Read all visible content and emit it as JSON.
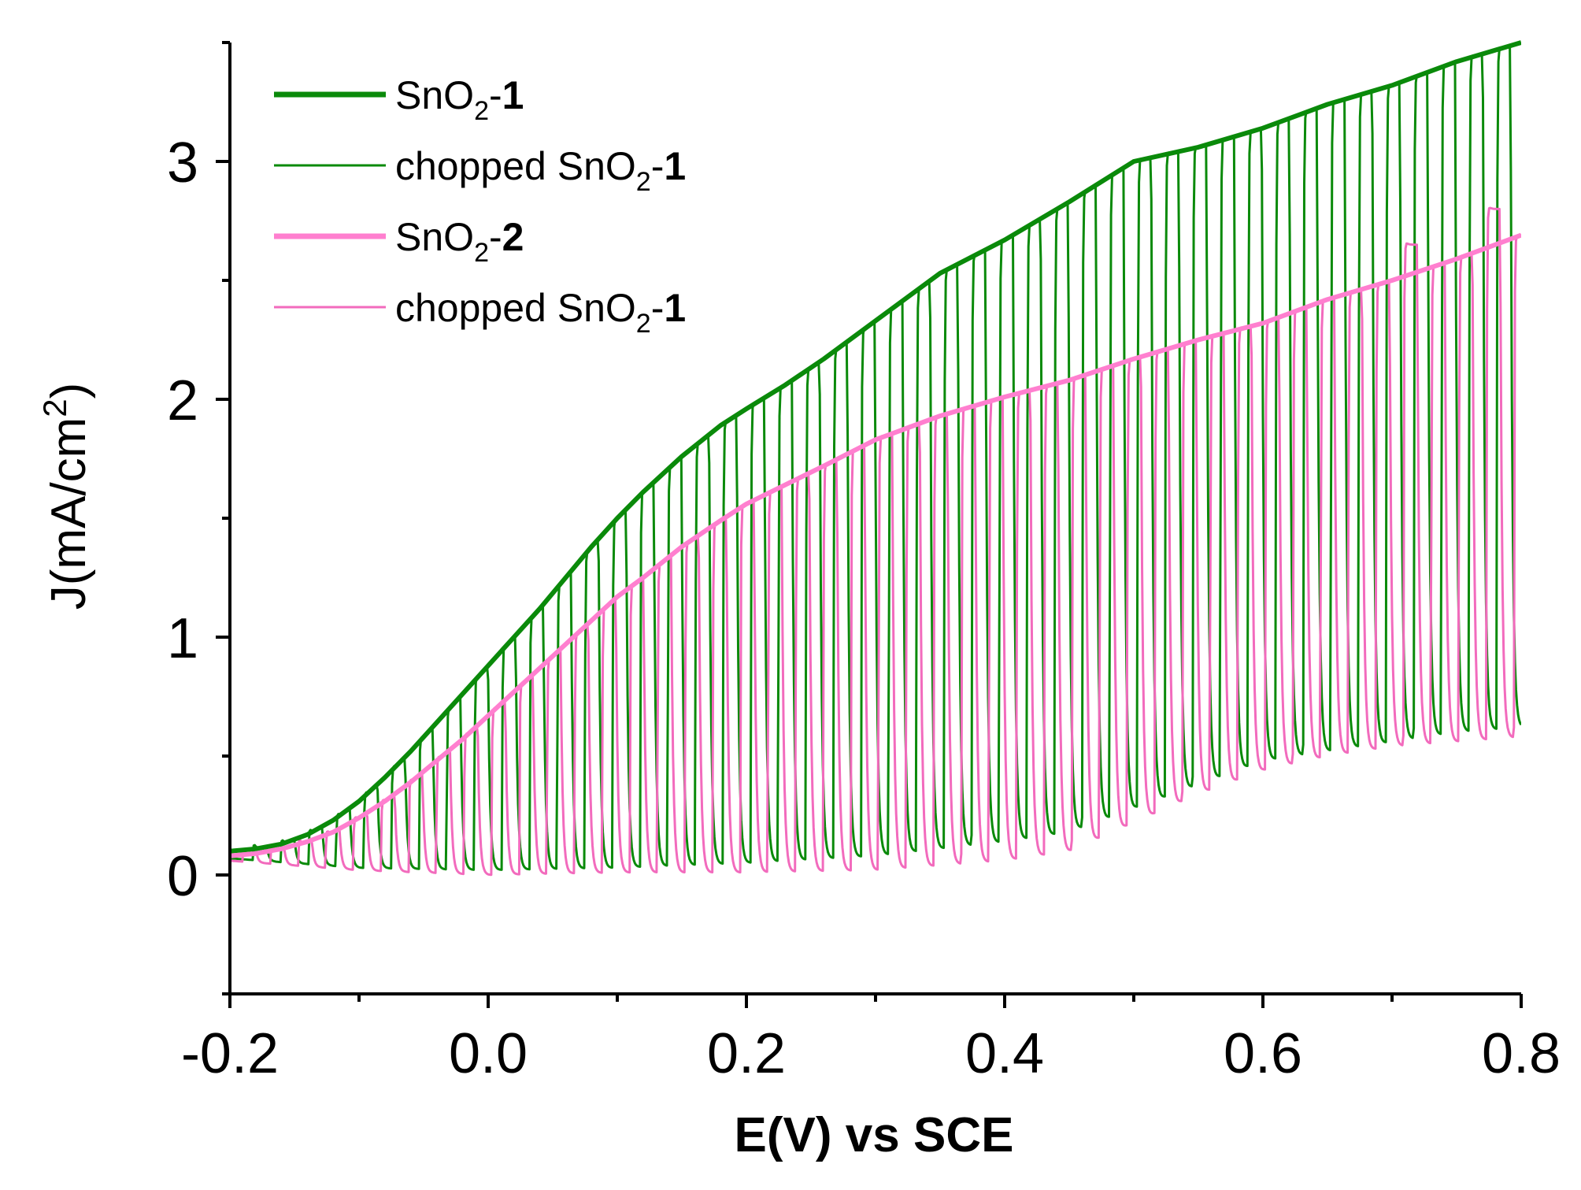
{
  "chart_data": {
    "type": "line",
    "title": "",
    "xlabel": "E(V) vs SCE",
    "ylabel": "J(mA/cm²)",
    "ylabel_parts": {
      "base": "J(mA/cm",
      "sup": "2",
      "close": ")"
    },
    "xlim": [
      -0.2,
      0.8
    ],
    "ylim": [
      -0.5,
      3.5
    ],
    "x_ticks": [
      -0.2,
      0.0,
      0.2,
      0.4,
      0.6,
      0.8
    ],
    "x_tick_labels": [
      "-0.2",
      "0.0",
      "0.2",
      "0.4",
      "0.6",
      "0.8"
    ],
    "y_ticks": [
      0,
      1,
      2,
      3
    ],
    "y_tick_labels": [
      "0",
      "1",
      "2",
      "3"
    ],
    "grid": false,
    "legend_position": "top-left",
    "series": [
      {
        "name": "SnO2-1",
        "label_parts": {
          "base": "SnO",
          "sub": "2",
          "suffix": "-",
          "bold": "1"
        },
        "style": "thick",
        "color": "#0a8a0a",
        "x": [
          -0.2,
          -0.18,
          -0.16,
          -0.14,
          -0.12,
          -0.1,
          -0.08,
          -0.06,
          -0.04,
          -0.02,
          0.0,
          0.02,
          0.04,
          0.06,
          0.08,
          0.1,
          0.12,
          0.15,
          0.18,
          0.2,
          0.23,
          0.26,
          0.3,
          0.35,
          0.4,
          0.45,
          0.5,
          0.55,
          0.6,
          0.65,
          0.7,
          0.75,
          0.8
        ],
        "y": [
          0.1,
          0.11,
          0.13,
          0.17,
          0.23,
          0.31,
          0.41,
          0.52,
          0.64,
          0.76,
          0.88,
          1.0,
          1.12,
          1.25,
          1.38,
          1.5,
          1.61,
          1.76,
          1.89,
          1.96,
          2.06,
          2.17,
          2.33,
          2.53,
          2.67,
          2.83,
          3.0,
          3.06,
          3.14,
          3.24,
          3.32,
          3.42,
          3.5
        ]
      },
      {
        "name": "chopped SnO2-1",
        "label_parts": {
          "base": "chopped SnO",
          "sub": "2",
          "suffix": "-",
          "bold": "1"
        },
        "style": "thin",
        "color": "#0a8a0a",
        "chop": {
          "x_start": -0.182,
          "period": 0.0214,
          "duty": 0.5,
          "peaks": [
            [
              0.7,
              3.0
            ],
            [
              0.75,
              3.3
            ]
          ]
        },
        "dark_x": [
          -0.2,
          -0.1,
          0.0,
          0.1,
          0.2,
          0.3,
          0.4,
          0.45,
          0.5,
          0.55,
          0.6,
          0.65,
          0.7,
          0.75,
          0.8
        ],
        "dark_y": [
          0.07,
          0.03,
          0.02,
          0.03,
          0.05,
          0.08,
          0.14,
          0.18,
          0.28,
          0.38,
          0.48,
          0.52,
          0.56,
          0.6,
          0.62
        ]
      },
      {
        "name": "SnO2-2",
        "label_parts": {
          "base": "SnO",
          "sub": "2",
          "suffix": "-",
          "bold": "2"
        },
        "style": "thick",
        "color": "#ff7fcf",
        "x": [
          -0.2,
          -0.18,
          -0.16,
          -0.14,
          -0.12,
          -0.1,
          -0.08,
          -0.06,
          -0.04,
          -0.02,
          0.0,
          0.02,
          0.04,
          0.06,
          0.08,
          0.1,
          0.12,
          0.15,
          0.18,
          0.2,
          0.23,
          0.26,
          0.3,
          0.35,
          0.4,
          0.45,
          0.5,
          0.55,
          0.6,
          0.65,
          0.7,
          0.75,
          0.8
        ],
        "y": [
          0.08,
          0.09,
          0.11,
          0.14,
          0.18,
          0.24,
          0.31,
          0.39,
          0.48,
          0.57,
          0.67,
          0.77,
          0.87,
          0.97,
          1.07,
          1.17,
          1.25,
          1.38,
          1.49,
          1.56,
          1.64,
          1.72,
          1.83,
          1.93,
          2.01,
          2.08,
          2.17,
          2.25,
          2.32,
          2.42,
          2.5,
          2.59,
          2.69
        ]
      },
      {
        "name": "chopped SnO2-1",
        "label_parts": {
          "base": "chopped SnO",
          "sub": "2",
          "suffix": "-",
          "bold": "1"
        },
        "style": "thin",
        "color": "#f26bbd",
        "chop": {
          "x_start": -0.19,
          "period": 0.0214,
          "duty": 0.5,
          "peaks": [
            [
              0.72,
              2.65
            ],
            [
              0.78,
              2.8
            ]
          ]
        },
        "dark_x": [
          -0.2,
          -0.1,
          0.0,
          0.1,
          0.2,
          0.3,
          0.4,
          0.45,
          0.5,
          0.55,
          0.6,
          0.65,
          0.7,
          0.75,
          0.8
        ],
        "dark_y": [
          0.06,
          0.02,
          0.0,
          0.01,
          0.01,
          0.02,
          0.06,
          0.1,
          0.22,
          0.34,
          0.44,
          0.5,
          0.54,
          0.56,
          0.58
        ]
      }
    ]
  }
}
